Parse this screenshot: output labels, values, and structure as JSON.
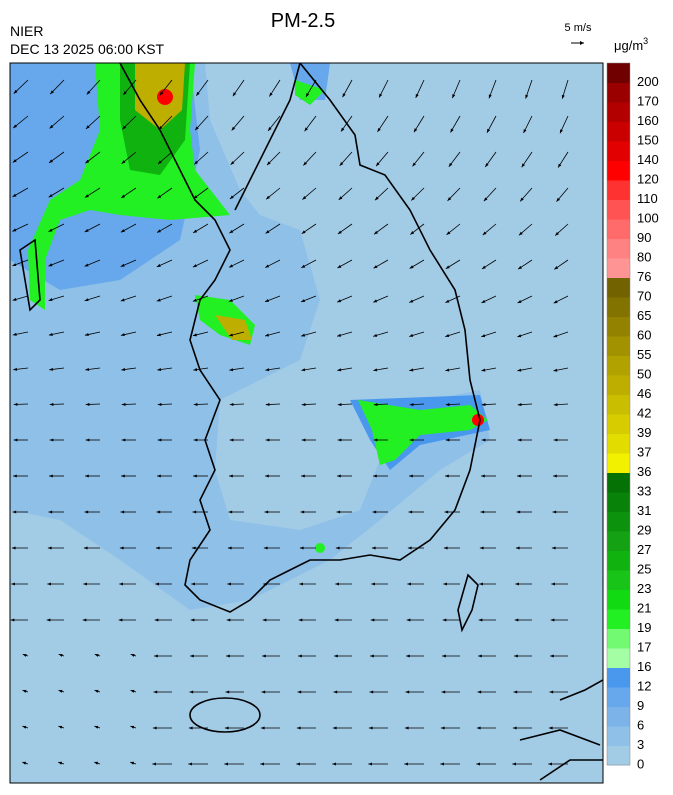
{
  "header": {
    "title": "PM-2.5",
    "agency": "NIER",
    "timestamp": "DEC 13 2025 06:00 KST",
    "wind_reference": "5 m/s"
  },
  "colorbar": {
    "unit": "μg/m",
    "unit_superscript": "3",
    "ticks": [
      0,
      3,
      6,
      9,
      12,
      16,
      17,
      19,
      21,
      23,
      25,
      27,
      29,
      31,
      33,
      36,
      37,
      39,
      42,
      46,
      50,
      55,
      60,
      65,
      70,
      76,
      80,
      90,
      100,
      110,
      120,
      140,
      150,
      160,
      170,
      200
    ],
    "colors": [
      "#a2cbe6",
      "#8fc0e8",
      "#7cb4ea",
      "#67a7ec",
      "#4a98ee",
      "#a4ffa4",
      "#72fa72",
      "#22f022",
      "#12da12",
      "#18c418",
      "#10b210",
      "#14a214",
      "#0c920c",
      "#088208",
      "#047204",
      "#f2f200",
      "#e2dc00",
      "#d6cc00",
      "#cabe00",
      "#beae00",
      "#b2a200",
      "#a29200",
      "#928200",
      "#827200",
      "#726200",
      "#ff9494",
      "#ff8282",
      "#ff6a6a",
      "#ff5252",
      "#ff3232",
      "#ff0000",
      "#e20000",
      "#ca0000",
      "#b20000",
      "#9a0000",
      "#700000"
    ]
  }
}
